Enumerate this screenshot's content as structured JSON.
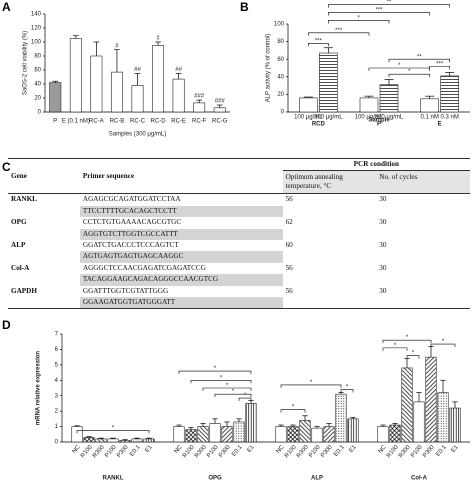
{
  "chart_data": [
    {
      "type": "bar",
      "label": "A",
      "ylabel": "SaOS-2 cell viability (%)",
      "xlabel": "Samples (300 μg/mL)",
      "categories": [
        "P",
        "E (0.1 nM)",
        "RC-A",
        "RC-B",
        "RC-C",
        "RC-D",
        "RC-E",
        "RC-F",
        "RC-G"
      ],
      "values": [
        42,
        105,
        80,
        57,
        38,
        95,
        47,
        13,
        6
      ],
      "errors": [
        2,
        4,
        20,
        32,
        17,
        5,
        8,
        4,
        4
      ],
      "annotations": [
        null,
        null,
        null,
        "#",
        "##",
        "‡",
        "##",
        "###",
        "###"
      ],
      "colors": [
        "#9a9a9a",
        "#ffffff",
        "#ffffff",
        "#ffffff",
        "#ffffff",
        "#ffffff",
        "#ffffff",
        "#ffffff",
        "#ffffff"
      ],
      "ylim": [
        0,
        140
      ],
      "yticks": [
        0,
        20,
        40,
        60,
        80,
        100,
        120,
        140
      ]
    },
    {
      "type": "grouped_bar",
      "label": "B",
      "ylabel": "ALP activity (% of control)",
      "xlabel": "Sample",
      "categories": [
        "RCD",
        "P",
        "E"
      ],
      "sublabels": [
        [
          "100 μg/mL",
          "300 μg/mL"
        ],
        [
          "100 μg/mL",
          "300 μg/mL"
        ],
        [
          "0.1 nM",
          "0.3 nM"
        ]
      ],
      "series": [
        {
          "values": [
            16,
            16,
            15
          ],
          "errors": [
            1,
            2,
            3
          ],
          "pattern": "none"
        },
        {
          "values": [
            67,
            31,
            41
          ],
          "errors": [
            6,
            6,
            4
          ],
          "pattern": "horizontal"
        }
      ],
      "brackets": [
        "**",
        "***",
        "*",
        "***",
        "***",
        "**",
        "*",
        "***",
        "*"
      ],
      "ylim": [
        0,
        100
      ],
      "yticks": [
        0,
        20,
        40,
        60,
        80,
        100
      ]
    },
    {
      "type": "grouped_bar",
      "label": "D",
      "ylabel": "mRNA relative expression",
      "categories": [
        "RANKL",
        "OPG",
        "ALP",
        "Col-A"
      ],
      "series": [
        {
          "name": "NC",
          "values": [
            1.0,
            1.0,
            1.0,
            1.0
          ],
          "errors": [
            0.05,
            0.1,
            0.1,
            0.1
          ],
          "pattern": "none"
        },
        {
          "name": "R100",
          "values": [
            0.3,
            0.8,
            1.0,
            1.1
          ],
          "errors": [
            0.05,
            0.15,
            0.1,
            0.1
          ],
          "pattern": "crosshatch"
        },
        {
          "name": "R300",
          "values": [
            0.2,
            1.0,
            1.4,
            4.8
          ],
          "errors": [
            0.05,
            0.2,
            0.3,
            0.6
          ],
          "pattern": "diagonal"
        },
        {
          "name": "P100",
          "values": [
            0.2,
            1.2,
            0.9,
            2.6
          ],
          "errors": [
            0.05,
            0.3,
            0.1,
            0.6
          ],
          "pattern": "none"
        },
        {
          "name": "P300",
          "values": [
            0.1,
            1.0,
            1.0,
            5.5
          ],
          "errors": [
            0.05,
            0.3,
            0.2,
            0.7
          ],
          "pattern": "diagonal2"
        },
        {
          "name": "E0.1",
          "values": [
            0.2,
            1.3,
            3.1,
            3.2
          ],
          "errors": [
            0.05,
            0.2,
            0.1,
            0.8
          ],
          "pattern": "dots"
        },
        {
          "name": "E1",
          "values": [
            0.2,
            2.5,
            1.5,
            2.2
          ],
          "errors": [
            0.05,
            0.2,
            0.1,
            0.4
          ],
          "pattern": "vertical"
        }
      ],
      "brackets": [
        "*",
        "*",
        "*",
        "*",
        "*",
        "*",
        "*",
        "*",
        "*",
        "*",
        "*",
        "*",
        "*"
      ],
      "ylim": [
        0,
        7
      ],
      "yticks": [
        0,
        1,
        2,
        3,
        4,
        5,
        6,
        7
      ]
    }
  ],
  "table": {
    "label": "C",
    "group_header": "PCR condition",
    "headers": [
      "Gene",
      "Primer sequence",
      "Optimum annealing temperature, °C",
      "No. of cycles"
    ],
    "rows": [
      {
        "gene": "RANKL",
        "primers": [
          "AGAGCGCAGATGGATCCTAA",
          "TTCCTTTTGCACAGCTCCTT"
        ],
        "temperature": 56,
        "cycles": 30
      },
      {
        "gene": "OPG",
        "primers": [
          "CCTCTGTGAAAACAGCGTGC",
          "AGGTGTCTTGGTCGCCATTT"
        ],
        "temperature": 62,
        "cycles": 30
      },
      {
        "gene": "ALP",
        "primers": [
          "GGATCTGACCCTCCCAGTCT",
          "AGTGAGTGAGTGAGCAAGGC"
        ],
        "temperature": 60,
        "cycles": 30
      },
      {
        "gene": "Col-A",
        "primers": [
          "AGGGCTCCAACGAGATCGAGATCCG",
          "TACAGGAAGCAGACAGGGCCAACGTCG"
        ],
        "temperature": 56,
        "cycles": 30
      },
      {
        "gene": "GAPDH",
        "primers": [
          "GGATTTGGTCGTATTGGG",
          "GGAAGATGGTGATGGGATT"
        ],
        "temperature": 56,
        "cycles": 30
      }
    ]
  }
}
